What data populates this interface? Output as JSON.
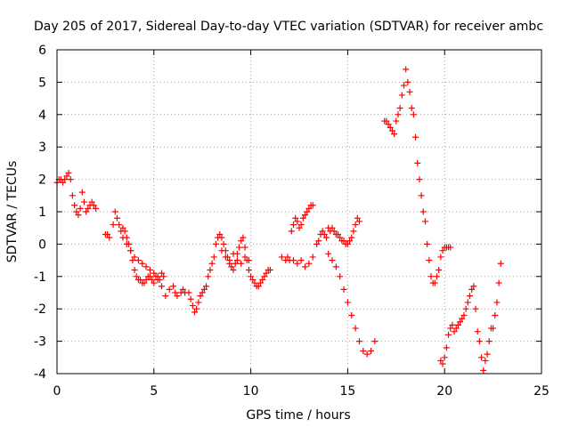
{
  "chart_data": {
    "type": "scatter",
    "title": "Day 205 of 2017, Sidereal Day-to-day VTEC variation (SDTVAR) for receiver ambc",
    "xlabel": "GPS time / hours",
    "ylabel": "SDTVAR / TECUs",
    "xlim": [
      0,
      25
    ],
    "ylim": [
      -4,
      6
    ],
    "xticks": [
      0,
      5,
      10,
      15,
      20,
      25
    ],
    "yticks": [
      -4,
      -3,
      -2,
      -1,
      0,
      1,
      2,
      3,
      4,
      5,
      6
    ],
    "grid": true,
    "marker": "+",
    "color": "#ff0000",
    "series": [
      {
        "name": "SDTVAR",
        "x": [
          0.0,
          0.1,
          0.2,
          0.3,
          0.4,
          0.5,
          0.6,
          0.7,
          0.8,
          0.9,
          1.0,
          1.1,
          1.2,
          1.3,
          1.4,
          1.5,
          1.6,
          1.7,
          1.8,
          1.9,
          2.0,
          2.5,
          2.6,
          2.7,
          2.9,
          3.0,
          3.1,
          3.2,
          3.3,
          3.4,
          3.5,
          3.6,
          3.7,
          3.8,
          3.9,
          4.0,
          4.1,
          4.2,
          4.3,
          4.4,
          4.5,
          4.6,
          4.7,
          4.8,
          4.9,
          5.0,
          5.1,
          5.2,
          5.3,
          5.4,
          5.5,
          5.6,
          5.8,
          6.0,
          6.1,
          6.2,
          6.4,
          6.5,
          6.6,
          3.4,
          3.6,
          3.8,
          4.0,
          4.2,
          4.4,
          4.6,
          4.8,
          5.0,
          5.2,
          5.4,
          6.8,
          6.9,
          7.0,
          7.1,
          7.2,
          7.3,
          7.4,
          7.5,
          7.6,
          7.7,
          7.8,
          7.9,
          8.0,
          8.1,
          8.2,
          8.3,
          8.4,
          8.5,
          8.6,
          8.7,
          8.8,
          8.9,
          9.0,
          9.1,
          9.2,
          9.3,
          9.4,
          9.5,
          9.6,
          9.7,
          9.8,
          9.9,
          10.0,
          10.1,
          10.2,
          10.3,
          10.4,
          10.5,
          10.6,
          10.7,
          10.8,
          10.9,
          11.0,
          8.5,
          8.7,
          8.9,
          9.1,
          9.3,
          9.5,
          9.7,
          9.9,
          11.6,
          11.8,
          11.9,
          12.0,
          12.1,
          12.2,
          12.3,
          12.4,
          12.5,
          12.6,
          12.7,
          12.8,
          12.9,
          13.0,
          13.1,
          13.2,
          12.2,
          12.4,
          12.6,
          12.8,
          13.0,
          13.2,
          13.4,
          13.5,
          13.6,
          13.7,
          13.8,
          13.9,
          14.0,
          14.1,
          14.2,
          14.3,
          14.4,
          14.5,
          14.6,
          14.7,
          14.8,
          14.9,
          15.0,
          15.1,
          15.2,
          15.3,
          15.4,
          15.5,
          15.6,
          14.0,
          14.2,
          14.4,
          14.6,
          14.8,
          15.0,
          15.2,
          15.4,
          15.6,
          15.8,
          16.0,
          16.2,
          16.4,
          16.9,
          17.0,
          17.1,
          17.2,
          17.3,
          17.4,
          17.5,
          17.6,
          17.7,
          17.8,
          17.9,
          18.0,
          18.1,
          18.2,
          18.3,
          18.4,
          18.5,
          18.6,
          18.7,
          18.8,
          18.9,
          19.0,
          19.1,
          19.2,
          19.3,
          19.4,
          19.5,
          19.6,
          19.7,
          19.8,
          19.9,
          20.0,
          20.1,
          20.2,
          20.3,
          19.8,
          19.9,
          20.0,
          20.1,
          20.2,
          20.3,
          20.4,
          20.5,
          20.6,
          20.7,
          20.8,
          20.9,
          21.0,
          21.1,
          21.2,
          21.3,
          21.4,
          21.5,
          21.6,
          21.7,
          21.8,
          21.9,
          22.0,
          22.1,
          22.2,
          22.3,
          22.4,
          22.5,
          22.6,
          22.7,
          22.8,
          22.9
        ],
        "y": [
          1.9,
          2.0,
          2.0,
          1.9,
          2.0,
          2.1,
          2.2,
          2.0,
          1.5,
          1.2,
          1.0,
          0.9,
          1.1,
          1.6,
          1.3,
          1.0,
          1.1,
          1.2,
          1.3,
          1.2,
          1.1,
          0.3,
          0.3,
          0.2,
          0.6,
          1.0,
          0.8,
          0.6,
          0.4,
          0.5,
          0.4,
          0.2,
          0.0,
          -0.2,
          -0.5,
          -0.8,
          -1.0,
          -1.1,
          -1.1,
          -1.2,
          -1.2,
          -1.1,
          -1.0,
          -1.0,
          -1.1,
          -1.2,
          -1.0,
          -1.1,
          -1.1,
          -1.3,
          -1.0,
          -1.6,
          -1.4,
          -1.3,
          -1.5,
          -1.6,
          -1.5,
          -1.4,
          -1.5,
          0.2,
          0.0,
          -0.2,
          -0.4,
          -0.5,
          -0.6,
          -0.7,
          -0.8,
          -0.9,
          -1.0,
          -0.9,
          -1.5,
          -1.7,
          -1.9,
          -2.1,
          -2.0,
          -1.8,
          -1.6,
          -1.5,
          -1.4,
          -1.3,
          -1.0,
          -0.8,
          -0.6,
          -0.4,
          0.0,
          0.2,
          0.3,
          0.2,
          0.0,
          -0.2,
          -0.4,
          -0.6,
          -0.7,
          -0.8,
          -0.6,
          -0.3,
          -0.1,
          0.1,
          0.2,
          -0.1,
          -0.5,
          -0.8,
          -1.0,
          -1.1,
          -1.2,
          -1.3,
          -1.3,
          -1.2,
          -1.1,
          -1.0,
          -0.9,
          -0.8,
          -0.8,
          -0.2,
          -0.4,
          -0.5,
          -0.3,
          -0.5,
          -0.6,
          -0.4,
          -0.5,
          -0.4,
          -0.5,
          -0.4,
          -0.5,
          0.4,
          0.6,
          0.8,
          0.7,
          0.5,
          0.6,
          0.8,
          0.9,
          1.0,
          1.1,
          1.2,
          1.2,
          -0.5,
          -0.6,
          -0.5,
          -0.7,
          -0.6,
          -0.4,
          0.0,
          0.1,
          0.3,
          0.4,
          0.3,
          0.2,
          0.5,
          0.4,
          0.5,
          0.4,
          0.3,
          0.3,
          0.2,
          0.1,
          0.1,
          0.0,
          0.0,
          0.1,
          0.2,
          0.4,
          0.6,
          0.8,
          0.7,
          -0.3,
          -0.5,
          -0.7,
          -1.0,
          -1.4,
          -1.8,
          -2.2,
          -2.6,
          -3.0,
          -3.3,
          -3.4,
          -3.3,
          -3.0,
          3.8,
          3.8,
          3.7,
          3.6,
          3.5,
          3.4,
          3.8,
          4.0,
          4.2,
          4.6,
          4.9,
          5.4,
          5.0,
          4.7,
          4.2,
          4.0,
          3.3,
          2.5,
          2.0,
          1.5,
          1.0,
          0.7,
          0.0,
          -0.5,
          -1.0,
          -1.2,
          -1.2,
          -1.0,
          -0.8,
          -0.4,
          -0.2,
          -0.1,
          -0.1,
          -0.1,
          -0.1,
          -3.6,
          -3.7,
          -3.5,
          -3.2,
          -2.8,
          -2.6,
          -2.5,
          -2.7,
          -2.6,
          -2.5,
          -2.4,
          -2.3,
          -2.2,
          -2.0,
          -1.8,
          -1.6,
          -1.4,
          -1.3,
          -2.0,
          -2.7,
          -3.0,
          -3.5,
          -3.9,
          -3.6,
          -3.4,
          -3.0,
          -2.6,
          -2.6,
          -2.2,
          -1.8,
          -1.2,
          -0.6
        ]
      }
    ]
  }
}
